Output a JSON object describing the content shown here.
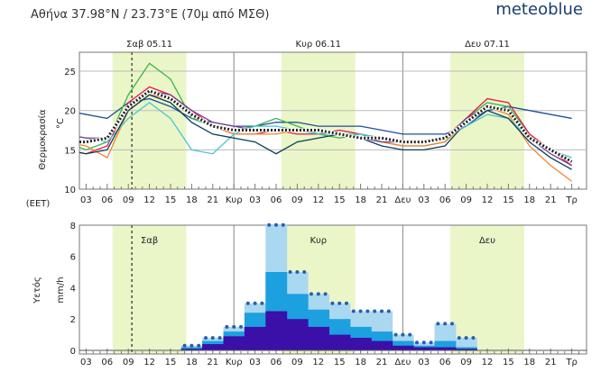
{
  "header": {
    "title": "Αθήνα  37.98°N / 23.73°E (70μ από ΜΣΘ)",
    "logo": "meteoblue"
  },
  "chart_data": [
    {
      "type": "line",
      "title": "",
      "ylabel": "Θερμοκρασία",
      "yunit": "°C",
      "ylim": [
        10,
        27
      ],
      "yticks": [
        10,
        15,
        20,
        25
      ],
      "xlabel": "(EET)",
      "x_hours": [
        0,
        3,
        6,
        9,
        12,
        15,
        18,
        21,
        24,
        27,
        30,
        33,
        36,
        39,
        42,
        45,
        48,
        51,
        54,
        57,
        60,
        63,
        66,
        69,
        72
      ],
      "day_labels": [
        "Σαβ 05.11",
        "Κυρ 06.11",
        "Δευ 07.11"
      ],
      "xtick_labels": [
        "03",
        "06",
        "09",
        "12",
        "15",
        "18",
        "21",
        "Κυρ",
        "03",
        "06",
        "09",
        "12",
        "15",
        "18",
        "21",
        "Δευ",
        "03",
        "06",
        "09",
        "12",
        "15",
        "18",
        "21",
        "Τρ"
      ],
      "series": [
        {
          "name": "m1",
          "color": "#1f4e9c",
          "values": [
            20,
            19.5,
            19,
            21,
            21.5,
            20.5,
            19,
            18.5,
            18,
            18,
            18.5,
            18.5,
            18,
            18,
            18,
            17.5,
            17,
            17,
            17,
            18,
            20,
            20.5,
            20,
            19.5,
            19
          ]
        },
        {
          "name": "m2",
          "color": "#3cb44b",
          "values": [
            16,
            15,
            16,
            22,
            26,
            24,
            19,
            18,
            17.5,
            18,
            19,
            18,
            17,
            16.5,
            17,
            16,
            15.5,
            15.5,
            16,
            19,
            21,
            20.5,
            17,
            15,
            13.5
          ]
        },
        {
          "name": "m3",
          "color": "#e6194b",
          "values": [
            15,
            14.5,
            15.5,
            21,
            23,
            22,
            20,
            18,
            17,
            17,
            17.5,
            17,
            17,
            17.5,
            17,
            16.5,
            16,
            16,
            16.5,
            19,
            21.5,
            21,
            17,
            15,
            13
          ]
        },
        {
          "name": "m4",
          "color": "#f58231",
          "values": [
            16,
            15.5,
            14,
            20,
            22,
            21.5,
            19.5,
            18,
            17,
            17,
            17,
            17.5,
            17.5,
            17,
            16.5,
            16,
            15.5,
            15.5,
            16,
            18.5,
            20.5,
            19.5,
            15.5,
            13,
            11
          ]
        },
        {
          "name": "m5",
          "color": "#4dc3d6",
          "values": [
            17,
            16.5,
            16,
            19,
            21,
            19,
            15,
            14.5,
            17,
            18,
            18,
            17.5,
            17,
            17,
            17,
            16.5,
            16,
            16,
            16.5,
            18,
            19.5,
            19,
            16.5,
            15,
            14
          ]
        },
        {
          "name": "m6",
          "color": "#0b3d5c",
          "values": [
            15,
            14.5,
            15,
            20,
            22,
            21,
            18.5,
            17,
            16.5,
            16,
            14.5,
            16,
            16.5,
            17,
            16.5,
            15.5,
            15,
            15,
            15.5,
            18.5,
            20,
            19,
            16,
            14,
            12.5
          ]
        },
        {
          "name": "m7",
          "color": "#7d3c98",
          "values": [
            17,
            16.5,
            16.5,
            20.5,
            22.5,
            22,
            20,
            18.5,
            18,
            17.5,
            17.5,
            17.5,
            17.5,
            17,
            16.5,
            16,
            16,
            16,
            16.5,
            19,
            20.5,
            20,
            16.5,
            14.5,
            13
          ]
        },
        {
          "name": "mean",
          "color": "#222222",
          "dashed": true,
          "values": [
            16,
            16,
            16.5,
            20.5,
            22.5,
            21.5,
            19.5,
            18,
            17.5,
            17.5,
            17.5,
            17.5,
            17.5,
            17,
            16.5,
            16.5,
            16,
            16,
            16.5,
            18.5,
            20.5,
            20,
            16.5,
            15,
            13.5
          ]
        }
      ]
    },
    {
      "type": "bar",
      "ylabel": "Υετός",
      "yunit": "mm/h",
      "ylim": [
        0,
        8
      ],
      "yticks": [
        0,
        2,
        4,
        6,
        8
      ],
      "day_labels": [
        "Σαβ",
        "Κυρ",
        "Δευ"
      ],
      "xtick_labels": [
        "03",
        "06",
        "09",
        "12",
        "15",
        "18",
        "21",
        "Κυρ",
        "03",
        "06",
        "09",
        "12",
        "15",
        "18",
        "21",
        "Δευ",
        "03",
        "06",
        "09",
        "12",
        "15",
        "18",
        "21",
        "Τρ"
      ],
      "x_hours": [
        18,
        21,
        24,
        27,
        30,
        33,
        36,
        39,
        42,
        45,
        48,
        51,
        54,
        57,
        60
      ],
      "series": [
        {
          "name": "max",
          "color": "#aad8f0",
          "values": [
            0.3,
            0.8,
            1.5,
            3,
            8,
            5,
            3.6,
            3,
            2.5,
            2.5,
            1,
            0.5,
            1.7,
            0.8,
            0
          ]
        },
        {
          "name": "upper",
          "color": "#1ca0e0",
          "values": [
            0.2,
            0.6,
            1.2,
            2.4,
            5,
            3.6,
            2.6,
            2,
            1.5,
            1.2,
            0.6,
            0.3,
            0.6,
            0.2,
            0
          ]
        },
        {
          "name": "mean",
          "color": "#3a10a8",
          "values": [
            0.1,
            0.4,
            0.9,
            1.5,
            2.5,
            2,
            1.5,
            1,
            0.8,
            0.6,
            0.3,
            0.2,
            0.2,
            0.1,
            0
          ]
        }
      ]
    }
  ]
}
